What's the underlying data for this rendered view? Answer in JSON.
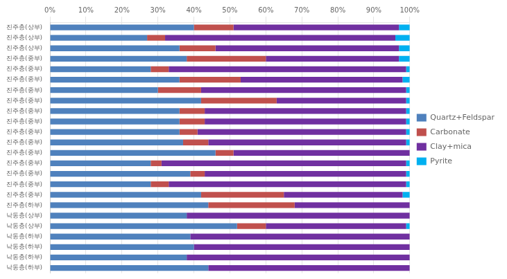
{
  "chart_data": {
    "type": "bar",
    "orientation": "horizontal",
    "stacked": true,
    "categories": [
      "진주층(상부)",
      "진주층(상부)",
      "진주층(상부)",
      "진주층(중부)",
      "진주층(중부)",
      "진주층(중부)",
      "진주층(중부)",
      "진주층(중부)",
      "진주층(중부)",
      "진주층(중부)",
      "진주층(중부)",
      "진주층(중부)",
      "진주층(중부)",
      "진주층(중부)",
      "진주층(중부)",
      "진주층(중부)",
      "진주층(중부)",
      "진주층(하부)",
      "낙동층(상부)",
      "낙동층(상부)",
      "낙동층(하부)",
      "낙동층(하부)",
      "낙동층(하부)",
      "낙동층(하부)"
    ],
    "series": [
      {
        "name": "Quartz+Feldspar",
        "color": "#4F81BD",
        "values": [
          40,
          27,
          36,
          38,
          28,
          36,
          30,
          42,
          36,
          36,
          36,
          37,
          46,
          28,
          39,
          28,
          42,
          44,
          38,
          52,
          39,
          40,
          38,
          44
        ]
      },
      {
        "name": "Carbonate",
        "color": "#C0504D",
        "values": [
          11,
          5,
          10,
          22,
          5,
          17,
          12,
          21,
          7,
          7,
          5,
          7,
          5,
          3,
          4,
          5,
          23,
          24,
          0,
          8,
          0,
          0,
          0,
          0
        ]
      },
      {
        "name": "Clay+mica",
        "color": "#7030A0",
        "values": [
          46,
          64,
          51,
          37,
          66,
          45,
          57,
          36,
          56,
          56,
          58,
          55,
          49,
          68,
          56,
          66,
          33,
          32,
          62,
          39,
          61,
          60,
          62,
          56
        ]
      },
      {
        "name": "Pyrite",
        "color": "#00B0F0",
        "values": [
          3,
          4,
          3,
          3,
          1,
          2,
          1,
          1,
          1,
          1,
          1,
          1,
          0,
          1,
          1,
          1,
          2,
          0,
          0,
          1,
          0,
          0,
          0,
          0
        ]
      }
    ],
    "xlim": [
      0,
      100
    ],
    "xticks": [
      {
        "value": 0,
        "label": "0%"
      },
      {
        "value": 10,
        "label": "10%"
      },
      {
        "value": 20,
        "label": "20%"
      },
      {
        "value": 30,
        "label": "30%"
      },
      {
        "value": 40,
        "label": "40%"
      },
      {
        "value": 50,
        "label": "50%"
      },
      {
        "value": 60,
        "label": "60%"
      },
      {
        "value": 70,
        "label": "70%"
      },
      {
        "value": 80,
        "label": "80%"
      },
      {
        "value": 90,
        "label": "90%"
      },
      {
        "value": 100,
        "label": "100%"
      }
    ],
    "grid": true,
    "legend": "right"
  }
}
